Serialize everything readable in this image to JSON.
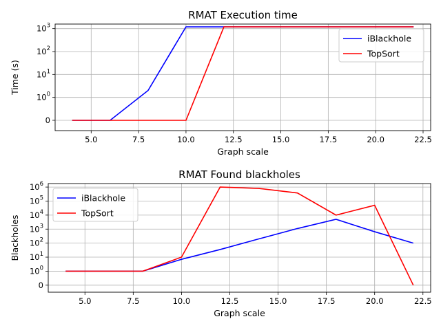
{
  "chart_data": [
    {
      "type": "line",
      "title": "RMAT Execution time",
      "xlabel": "Graph scale",
      "ylabel": "Time (s)",
      "yscale": "symlog",
      "xlim": [
        3.1,
        22.9
      ],
      "x_ticks": [
        "5.0",
        "7.5",
        "10.0",
        "12.5",
        "15.0",
        "17.5",
        "20.0",
        "22.5"
      ],
      "y_ticks": [
        {
          "value": 0,
          "base": "0",
          "exp": ""
        },
        {
          "value": 1,
          "base": "10",
          "exp": "0"
        },
        {
          "value": 10,
          "base": "10",
          "exp": "1"
        },
        {
          "value": 100,
          "base": "10",
          "exp": "2"
        },
        {
          "value": 1000,
          "base": "10",
          "exp": "3"
        }
      ],
      "grid": true,
      "legend_position": "top-right",
      "series": [
        {
          "name": "iBlackhole",
          "color": "#0000ff",
          "x": [
            4,
            6,
            8,
            10,
            12,
            14,
            16,
            18,
            20,
            22
          ],
          "y": [
            0,
            0,
            2,
            1200,
            1200,
            1200,
            1200,
            1200,
            1200,
            1200
          ]
        },
        {
          "name": "TopSort",
          "color": "#ff0000",
          "x": [
            4,
            6,
            8,
            10,
            12,
            14,
            16,
            18,
            20,
            22
          ],
          "y": [
            0,
            0,
            0,
            0,
            1200,
            1200,
            1200,
            1200,
            1200,
            1200
          ]
        }
      ]
    },
    {
      "type": "line",
      "title": "RMAT Found blackholes",
      "xlabel": "Graph scale",
      "ylabel": "Blackholes",
      "yscale": "symlog",
      "xlim": [
        3.1,
        22.9
      ],
      "x_ticks": [
        "5.0",
        "7.5",
        "10.0",
        "12.5",
        "15.0",
        "17.5",
        "20.0",
        "22.5"
      ],
      "y_ticks": [
        {
          "value": 0,
          "base": "0",
          "exp": ""
        },
        {
          "value": 1,
          "base": "10",
          "exp": "0"
        },
        {
          "value": 10,
          "base": "10",
          "exp": "1"
        },
        {
          "value": 100,
          "base": "10",
          "exp": "2"
        },
        {
          "value": 1000,
          "base": "10",
          "exp": "3"
        },
        {
          "value": 10000,
          "base": "10",
          "exp": "4"
        },
        {
          "value": 100000,
          "base": "10",
          "exp": "5"
        },
        {
          "value": 1000000,
          "base": "10",
          "exp": "6"
        }
      ],
      "grid": true,
      "legend_position": "top-left",
      "series": [
        {
          "name": "iBlackhole",
          "color": "#0000ff",
          "x": [
            4,
            6,
            8,
            10,
            12,
            14,
            16,
            18,
            20,
            22
          ],
          "y": [
            1,
            1,
            1,
            7,
            35,
            200,
            1100,
            5000,
            650,
            100
          ]
        },
        {
          "name": "TopSort",
          "color": "#ff0000",
          "x": [
            4,
            6,
            8,
            10,
            12,
            14,
            16,
            18,
            20,
            22
          ],
          "y": [
            1,
            1,
            1,
            10,
            1000000,
            800000,
            380000,
            10000,
            50000,
            0
          ]
        }
      ]
    }
  ]
}
